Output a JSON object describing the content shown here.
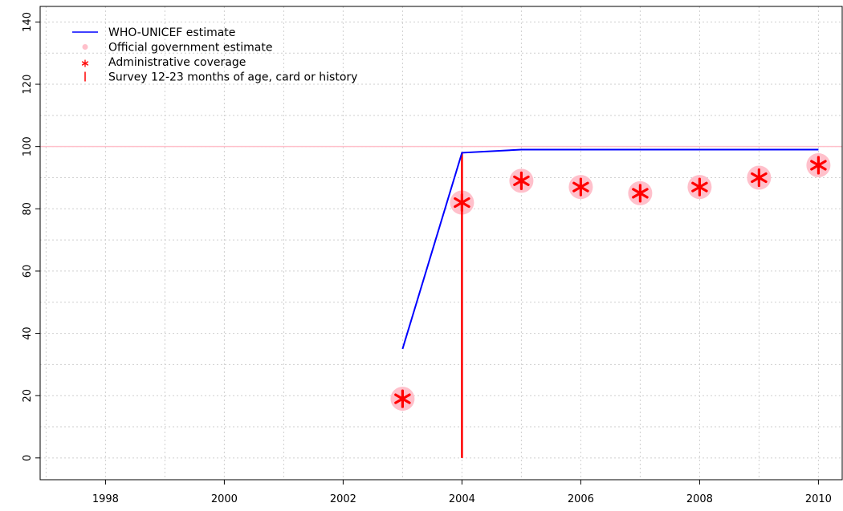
{
  "chart_data": {
    "type": "line",
    "title": "",
    "xlabel": "",
    "ylabel": "",
    "xlim": [
      1996.9,
      2010.4
    ],
    "ylim": [
      -7,
      145
    ],
    "x_ticks": [
      1998,
      2000,
      2002,
      2004,
      2006,
      2008,
      2010
    ],
    "y_ticks": [
      0,
      20,
      40,
      60,
      80,
      100,
      120,
      140
    ],
    "x_minor_grid": [
      1997,
      1998,
      1999,
      2000,
      2001,
      2002,
      2003,
      2004,
      2005,
      2006,
      2007,
      2008,
      2009,
      2010
    ],
    "y_minor_grid": [
      0,
      10,
      20,
      30,
      40,
      50,
      60,
      70,
      80,
      90,
      100,
      110,
      120,
      130,
      140
    ],
    "grid": true,
    "reference_line": {
      "y": 100,
      "color": "#ffc0cb"
    },
    "legend_position": "top-left",
    "legend": [
      {
        "label": "WHO-UNICEF estimate",
        "symbol": "line",
        "color": "#0000ff"
      },
      {
        "label": "Official government estimate",
        "symbol": "dot",
        "color": "#ffc0cb"
      },
      {
        "label": "Administrative coverage",
        "symbol": "asterisk",
        "color": "#ff0000"
      },
      {
        "label": "Survey 12-23 months of age, card or history",
        "symbol": "bar",
        "color": "#ff0000"
      }
    ],
    "series": [
      {
        "name": "WHO-UNICEF estimate",
        "type": "line",
        "color": "#0000ff",
        "points": [
          [
            2003,
            35
          ],
          [
            2004,
            98
          ],
          [
            2005,
            99
          ],
          [
            2006,
            99
          ],
          [
            2007,
            99
          ],
          [
            2008,
            99
          ],
          [
            2009,
            99
          ],
          [
            2010,
            99
          ]
        ]
      },
      {
        "name": "Official government estimate",
        "type": "dot",
        "color": "#ffc0cb",
        "points": [
          [
            2003,
            19
          ],
          [
            2004,
            82
          ],
          [
            2005,
            89
          ],
          [
            2006,
            87
          ],
          [
            2007,
            85
          ],
          [
            2008,
            87
          ],
          [
            2009,
            90
          ],
          [
            2010,
            94
          ]
        ]
      },
      {
        "name": "Administrative coverage",
        "type": "asterisk",
        "color": "#ff0000",
        "points": [
          [
            2003,
            19
          ],
          [
            2004,
            82
          ],
          [
            2005,
            89
          ],
          [
            2006,
            87
          ],
          [
            2007,
            85
          ],
          [
            2008,
            87
          ],
          [
            2009,
            90
          ],
          [
            2010,
            94
          ]
        ]
      },
      {
        "name": "Survey 12-23 months of age, card or history",
        "type": "bar",
        "color": "#ff0000",
        "points": [
          [
            2004,
            98
          ]
        ]
      }
    ]
  }
}
